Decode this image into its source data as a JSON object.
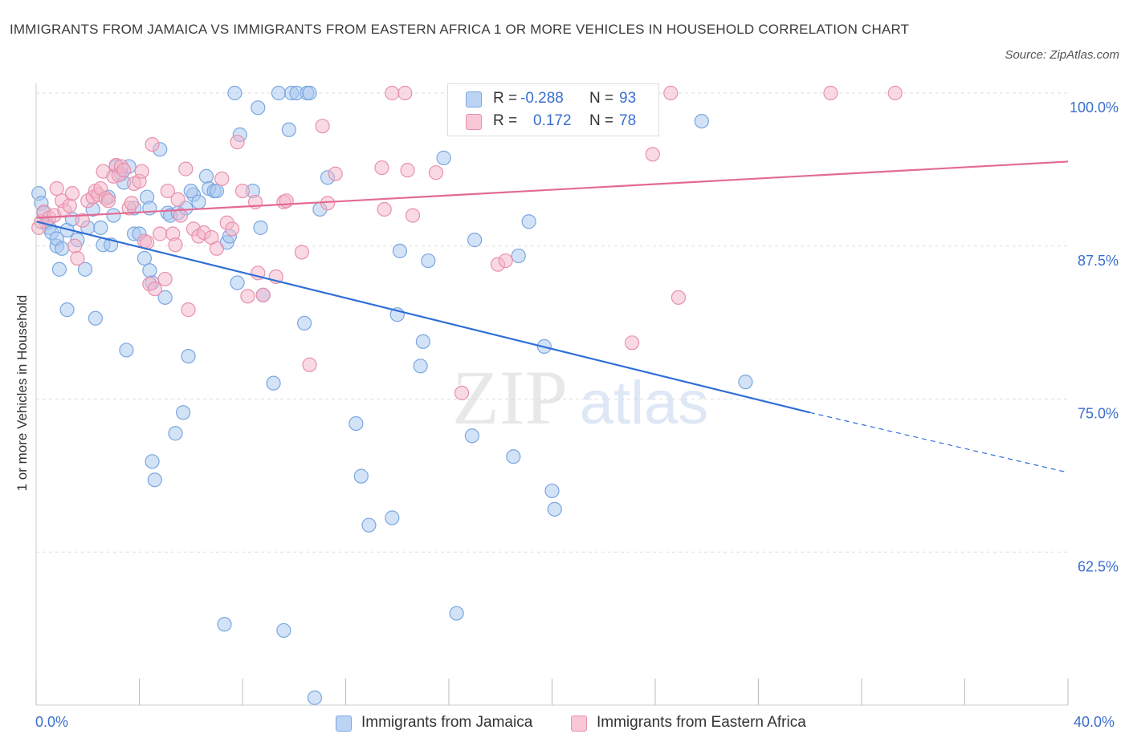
{
  "title": "IMMIGRANTS FROM JAMAICA VS IMMIGRANTS FROM EASTERN AFRICA 1 OR MORE VEHICLES IN HOUSEHOLD CORRELATION CHART",
  "source": "Source: ZipAtlas.com",
  "watermark": {
    "zip": "ZIP",
    "atlas": "atlas"
  },
  "colors": {
    "blue_fill": "#a8c8f0",
    "blue_stroke": "#7aa6e0",
    "blue_line": "#2f6fd6",
    "pink_fill": "#f4b6c9",
    "pink_stroke": "#e890ab",
    "pink_line": "#e36a93",
    "axis_label": "#3a6fd0",
    "grid": "#dedede"
  },
  "legend": {
    "r_label": "R =",
    "n_label": "N =",
    "blue": {
      "r": "-0.288",
      "n": "93"
    },
    "pink": {
      "r": "0.172",
      "n": "78"
    }
  },
  "chart_data": {
    "type": "scatter",
    "title": "IMMIGRANTS FROM JAMAICA VS IMMIGRANTS FROM EASTERN AFRICA 1 OR MORE VEHICLES IN HOUSEHOLD CORRELATION CHART",
    "xlabel": "",
    "ylabel": "1 or more Vehicles in Household",
    "xlim": [
      0,
      40
    ],
    "ylim": [
      50,
      100.5
    ],
    "x_tick_labels": [
      "0.0%",
      "40.0%"
    ],
    "y_ticks": [
      100,
      87.5,
      75,
      62.5
    ],
    "y_tick_labels": [
      "100.0%",
      "87.5%",
      "75.0%",
      "62.5%"
    ],
    "grid": true,
    "legend_position": "top-center",
    "series": [
      {
        "name": "Immigrants from Jamaica",
        "color": "blue",
        "trend": {
          "x": [
            0,
            30,
            40
          ],
          "y": [
            89.5,
            73.9,
            69.0
          ],
          "solid_to_x": 30
        },
        "points": [
          [
            0.1,
            91.8
          ],
          [
            0.2,
            91.0
          ],
          [
            0.3,
            90.2
          ],
          [
            0.4,
            89.4
          ],
          [
            0.5,
            89.0
          ],
          [
            0.6,
            88.6
          ],
          [
            0.8,
            87.5
          ],
          [
            0.9,
            85.6
          ],
          [
            0.8,
            88.1
          ],
          [
            1.0,
            87.3
          ],
          [
            1.2,
            88.8
          ],
          [
            1.4,
            89.7
          ],
          [
            1.6,
            88.0
          ],
          [
            1.9,
            85.6
          ],
          [
            1.2,
            82.3
          ],
          [
            2.2,
            90.5
          ],
          [
            2.0,
            89.0
          ],
          [
            2.3,
            81.6
          ],
          [
            2.5,
            89.0
          ],
          [
            2.6,
            87.6
          ],
          [
            2.8,
            91.5
          ],
          [
            3.0,
            90.0
          ],
          [
            2.9,
            87.6
          ],
          [
            3.1,
            94.0
          ],
          [
            3.3,
            93.4
          ],
          [
            3.4,
            92.7
          ],
          [
            3.5,
            79.0
          ],
          [
            3.6,
            94.0
          ],
          [
            3.8,
            88.5
          ],
          [
            4.0,
            88.5
          ],
          [
            3.8,
            90.6
          ],
          [
            4.2,
            86.5
          ],
          [
            4.3,
            91.5
          ],
          [
            4.4,
            85.5
          ],
          [
            4.4,
            90.6
          ],
          [
            4.5,
            84.5
          ],
          [
            4.5,
            69.9
          ],
          [
            4.6,
            68.4
          ],
          [
            4.8,
            95.4
          ],
          [
            5.0,
            83.3
          ],
          [
            5.1,
            90.2
          ],
          [
            5.2,
            90.0
          ],
          [
            5.4,
            72.2
          ],
          [
            5.5,
            90.2
          ],
          [
            5.7,
            73.9
          ],
          [
            5.8,
            90.6
          ],
          [
            5.9,
            78.5
          ],
          [
            6.1,
            91.7
          ],
          [
            6.0,
            92.0
          ],
          [
            6.3,
            91.1
          ],
          [
            6.6,
            93.2
          ],
          [
            6.7,
            92.2
          ],
          [
            6.9,
            92.0
          ],
          [
            7.0,
            92.0
          ],
          [
            7.3,
            56.6
          ],
          [
            7.4,
            87.8
          ],
          [
            7.5,
            88.3
          ],
          [
            7.7,
            100.0
          ],
          [
            7.8,
            84.5
          ],
          [
            7.9,
            96.6
          ],
          [
            8.4,
            92.0
          ],
          [
            8.6,
            98.8
          ],
          [
            8.7,
            89.0
          ],
          [
            8.8,
            83.5
          ],
          [
            9.2,
            76.3
          ],
          [
            9.4,
            100.0
          ],
          [
            9.6,
            56.1
          ],
          [
            9.8,
            97.0
          ],
          [
            9.9,
            100.0
          ],
          [
            10.1,
            100.0
          ],
          [
            10.4,
            81.2
          ],
          [
            10.5,
            100.0
          ],
          [
            10.6,
            100.0
          ],
          [
            10.8,
            50.6
          ],
          [
            11.0,
            90.5
          ],
          [
            11.3,
            93.1
          ],
          [
            12.4,
            73.0
          ],
          [
            12.6,
            68.7
          ],
          [
            12.9,
            64.7
          ],
          [
            13.8,
            65.3
          ],
          [
            14.0,
            81.9
          ],
          [
            14.1,
            87.1
          ],
          [
            14.9,
            77.7
          ],
          [
            15.0,
            79.7
          ],
          [
            15.2,
            86.3
          ],
          [
            15.8,
            94.7
          ],
          [
            16.3,
            57.5
          ],
          [
            16.9,
            72.0
          ],
          [
            17.0,
            88.0
          ],
          [
            18.5,
            70.3
          ],
          [
            18.7,
            86.7
          ],
          [
            19.1,
            89.5
          ],
          [
            19.7,
            79.3
          ],
          [
            20.0,
            67.5
          ],
          [
            20.1,
            66.0
          ],
          [
            25.8,
            97.7
          ],
          [
            27.5,
            76.4
          ]
        ]
      },
      {
        "name": "Immigrants from Eastern Africa",
        "color": "pink",
        "trend": {
          "x": [
            0,
            40
          ],
          "y": [
            89.8,
            94.4
          ],
          "solid_to_x": 40
        },
        "points": [
          [
            0.1,
            89.0
          ],
          [
            0.2,
            89.5
          ],
          [
            0.3,
            90.3
          ],
          [
            0.5,
            89.8
          ],
          [
            0.7,
            90.0
          ],
          [
            0.8,
            92.2
          ],
          [
            1.0,
            91.2
          ],
          [
            1.1,
            90.4
          ],
          [
            1.3,
            90.8
          ],
          [
            1.4,
            91.8
          ],
          [
            1.5,
            87.5
          ],
          [
            1.6,
            86.5
          ],
          [
            1.8,
            89.6
          ],
          [
            2.0,
            91.2
          ],
          [
            2.2,
            91.5
          ],
          [
            2.3,
            92.0
          ],
          [
            2.4,
            91.7
          ],
          [
            2.5,
            92.2
          ],
          [
            2.6,
            93.6
          ],
          [
            2.7,
            91.4
          ],
          [
            2.8,
            91.2
          ],
          [
            3.0,
            93.2
          ],
          [
            3.1,
            94.1
          ],
          [
            3.2,
            93.3
          ],
          [
            3.3,
            94.0
          ],
          [
            3.4,
            93.7
          ],
          [
            3.6,
            90.6
          ],
          [
            3.7,
            91.0
          ],
          [
            3.8,
            92.6
          ],
          [
            4.0,
            92.8
          ],
          [
            4.1,
            93.6
          ],
          [
            4.2,
            87.9
          ],
          [
            4.3,
            87.8
          ],
          [
            4.4,
            84.4
          ],
          [
            4.5,
            95.8
          ],
          [
            4.6,
            84.0
          ],
          [
            4.8,
            88.5
          ],
          [
            5.0,
            84.8
          ],
          [
            5.1,
            92.0
          ],
          [
            5.3,
            88.5
          ],
          [
            5.4,
            87.6
          ],
          [
            5.5,
            91.3
          ],
          [
            5.6,
            90.0
          ],
          [
            5.8,
            93.8
          ],
          [
            5.9,
            82.3
          ],
          [
            6.1,
            88.9
          ],
          [
            6.3,
            88.3
          ],
          [
            6.5,
            88.6
          ],
          [
            6.8,
            88.2
          ],
          [
            7.0,
            87.3
          ],
          [
            7.2,
            93.0
          ],
          [
            7.4,
            89.4
          ],
          [
            7.6,
            88.9
          ],
          [
            7.8,
            96.0
          ],
          [
            8.0,
            92.0
          ],
          [
            8.2,
            83.4
          ],
          [
            8.5,
            91.1
          ],
          [
            8.6,
            85.3
          ],
          [
            8.8,
            83.5
          ],
          [
            9.3,
            85.0
          ],
          [
            9.6,
            91.1
          ],
          [
            9.7,
            91.2
          ],
          [
            10.3,
            87.0
          ],
          [
            10.6,
            77.8
          ],
          [
            11.1,
            97.3
          ],
          [
            11.3,
            91.0
          ],
          [
            11.6,
            93.4
          ],
          [
            13.4,
            93.9
          ],
          [
            13.5,
            90.5
          ],
          [
            13.8,
            100.0
          ],
          [
            14.3,
            100.0
          ],
          [
            14.4,
            93.7
          ],
          [
            14.6,
            90.0
          ],
          [
            15.5,
            93.5
          ],
          [
            16.5,
            75.5
          ],
          [
            17.9,
            86.0
          ],
          [
            18.2,
            86.3
          ],
          [
            23.1,
            79.6
          ],
          [
            23.9,
            95.0
          ],
          [
            24.6,
            100.0
          ],
          [
            24.9,
            83.3
          ],
          [
            30.8,
            100.0
          ],
          [
            33.3,
            100.0
          ]
        ]
      }
    ]
  }
}
